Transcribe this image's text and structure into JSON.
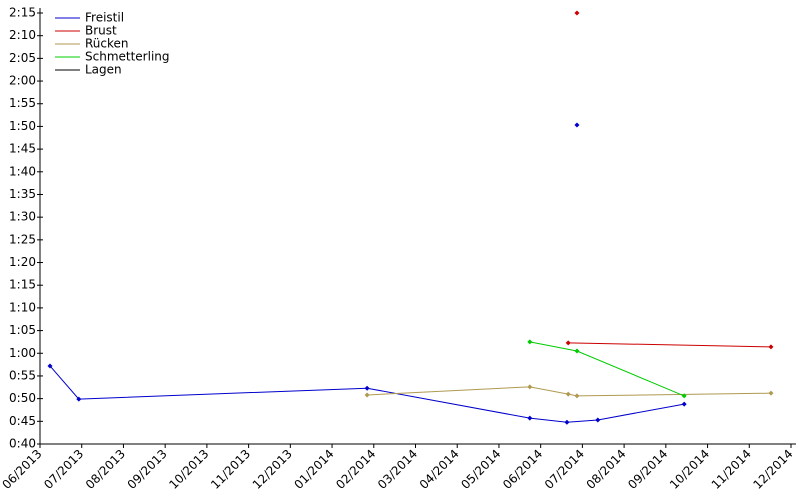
{
  "chart_data": {
    "type": "line",
    "xlim": [
      0,
      18
    ],
    "xticks": [
      {
        "value": 0,
        "label": "06/2013"
      },
      {
        "value": 1,
        "label": "07/2013"
      },
      {
        "value": 2,
        "label": "08/2013"
      },
      {
        "value": 3,
        "label": "09/2013"
      },
      {
        "value": 4,
        "label": "10/2013"
      },
      {
        "value": 5,
        "label": "11/2013"
      },
      {
        "value": 6,
        "label": "12/2013"
      },
      {
        "value": 7,
        "label": "01/2014"
      },
      {
        "value": 8,
        "label": "02/2014"
      },
      {
        "value": 9,
        "label": "03/2014"
      },
      {
        "value": 10,
        "label": "04/2014"
      },
      {
        "value": 11,
        "label": "05/2014"
      },
      {
        "value": 12,
        "label": "06/2014"
      },
      {
        "value": 13,
        "label": "07/2014"
      },
      {
        "value": 14,
        "label": "08/2014"
      },
      {
        "value": 15,
        "label": "09/2014"
      },
      {
        "value": 16,
        "label": "10/2014"
      },
      {
        "value": 17,
        "label": "11/2014"
      },
      {
        "value": 18,
        "label": "12/2014"
      }
    ],
    "ylim": [
      40,
      135
    ],
    "yticks": [
      {
        "value": 40,
        "label": "0:40"
      },
      {
        "value": 45,
        "label": "0:45"
      },
      {
        "value": 50,
        "label": "0:50"
      },
      {
        "value": 55,
        "label": "0:55"
      },
      {
        "value": 60,
        "label": "1:00"
      },
      {
        "value": 65,
        "label": "1:05"
      },
      {
        "value": 70,
        "label": "1:10"
      },
      {
        "value": 75,
        "label": "1:15"
      },
      {
        "value": 80,
        "label": "1:20"
      },
      {
        "value": 85,
        "label": "1:25"
      },
      {
        "value": 90,
        "label": "1:30"
      },
      {
        "value": 95,
        "label": "1:35"
      },
      {
        "value": 100,
        "label": "1:40"
      },
      {
        "value": 105,
        "label": "1:45"
      },
      {
        "value": 110,
        "label": "1:50"
      },
      {
        "value": 115,
        "label": "1:55"
      },
      {
        "value": 120,
        "label": "2:00"
      },
      {
        "value": 125,
        "label": "2:05"
      },
      {
        "value": 130,
        "label": "2:10"
      },
      {
        "value": 135,
        "label": "2:15"
      }
    ],
    "legend": "upper left",
    "series": [
      {
        "name": "Freistil",
        "color": "#0000cc",
        "x": [
          0.24,
          0.93,
          7.84,
          11.74,
          12.63,
          13.37,
          15.44,
          null,
          12.87
        ],
        "values": [
          57.2,
          49.9,
          52.3,
          45.7,
          44.8,
          45.3,
          48.8,
          null,
          110.3
        ]
      },
      {
        "name": "Brust",
        "color": "#cc0000",
        "x": [
          12.87,
          null,
          12.66,
          17.52
        ],
        "values": [
          135,
          null,
          62.3,
          61.4
        ]
      },
      {
        "name": "Rücken",
        "color": "#b09a50",
        "x": [
          7.84,
          11.74,
          12.66,
          12.87,
          17.52
        ],
        "values": [
          50.8,
          52.6,
          51.0,
          50.6,
          51.2
        ]
      },
      {
        "name": "Schmetterling",
        "color": "#00cc00",
        "x": [
          11.74,
          12.87,
          15.44
        ],
        "values": [
          62.5,
          60.5,
          50.6
        ]
      },
      {
        "name": "Lagen",
        "color": "#000000",
        "x": [],
        "values": []
      }
    ]
  }
}
